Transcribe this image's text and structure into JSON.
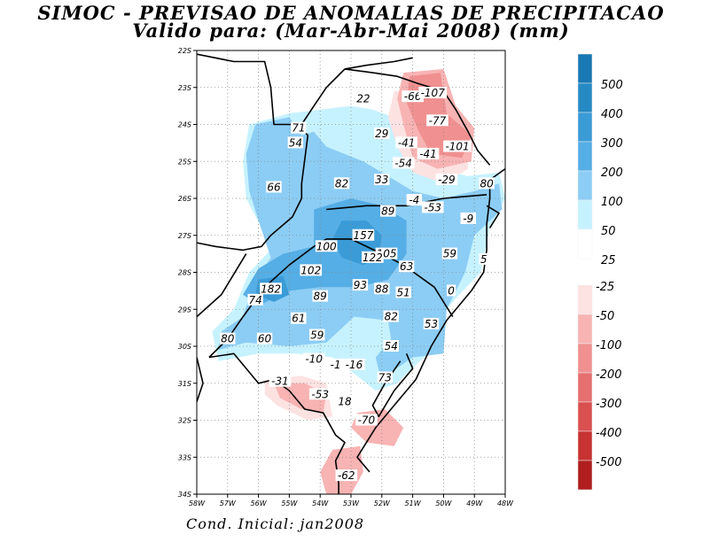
{
  "title": "SIMOC - PREVISAO DE ANOMALIAS DE PRECIPITACAO",
  "subtitle": "Valido para: (Mar-Abr-Mai 2008) (mm)",
  "footer": "Cond. Inicial: jan2008",
  "lat_labels": [
    "22S",
    "23S",
    "24S",
    "25S",
    "26S",
    "27S",
    "28S",
    "29S",
    "30S",
    "31S",
    "32S",
    "33S",
    "34S"
  ],
  "lon_labels": [
    "58W",
    "57W",
    "56W",
    "55W",
    "54W",
    "53W",
    "52W",
    "51W",
    "50W",
    "49W",
    "48W"
  ],
  "legend": {
    "positive": [
      {
        "label": "500",
        "color": "#1a78b4"
      },
      {
        "label": "400",
        "color": "#2689c4"
      },
      {
        "label": "300",
        "color": "#3a9bd6"
      },
      {
        "label": "200",
        "color": "#55aee5"
      },
      {
        "label": "100",
        "color": "#8ccdf5"
      },
      {
        "label": "50",
        "color": "#c6f2ff"
      },
      {
        "label": "25",
        "color": "#ffffff"
      }
    ],
    "negative": [
      {
        "label": "-25",
        "color": "#fde2e2"
      },
      {
        "label": "-50",
        "color": "#f8b3b3"
      },
      {
        "label": "-100",
        "color": "#f09090"
      },
      {
        "label": "-200",
        "color": "#e66f6f"
      },
      {
        "label": "-300",
        "color": "#da4f4f"
      },
      {
        "label": "-400",
        "color": "#c73232"
      },
      {
        "label": "-500",
        "color": "#b01e1e"
      }
    ]
  },
  "map_labels": [
    {
      "text": "22",
      "lon": -52.6,
      "lat": -23.3
    },
    {
      "text": "-66",
      "lon": -51.0,
      "lat": -23.25
    },
    {
      "text": "-107",
      "lon": -50.35,
      "lat": -23.15
    },
    {
      "text": "-77",
      "lon": -50.2,
      "lat": -23.9
    },
    {
      "text": "71",
      "lon": -54.7,
      "lat": -24.1
    },
    {
      "text": "29",
      "lon": -52.0,
      "lat": -24.25
    },
    {
      "text": "54",
      "lon": -54.8,
      "lat": -24.5
    },
    {
      "text": "-41",
      "lon": -51.2,
      "lat": -24.5
    },
    {
      "text": "-101",
      "lon": -49.55,
      "lat": -24.6
    },
    {
      "text": "-41",
      "lon": -50.5,
      "lat": -24.8
    },
    {
      "text": "-54",
      "lon": -51.3,
      "lat": -25.05
    },
    {
      "text": "33",
      "lon": -52.0,
      "lat": -25.5
    },
    {
      "text": "82",
      "lon": -53.3,
      "lat": -25.6
    },
    {
      "text": "-29",
      "lon": -49.9,
      "lat": -25.5
    },
    {
      "text": "80",
      "lon": -48.6,
      "lat": -25.6
    },
    {
      "text": "66",
      "lon": -55.5,
      "lat": -25.7
    },
    {
      "text": "-4",
      "lon": -50.95,
      "lat": -26.05
    },
    {
      "text": "-53",
      "lon": -50.35,
      "lat": -26.25
    },
    {
      "text": "89",
      "lon": -51.8,
      "lat": -26.35
    },
    {
      "text": "-9",
      "lon": -49.2,
      "lat": -26.55
    },
    {
      "text": "157",
      "lon": -52.6,
      "lat": -27.0
    },
    {
      "text": "100",
      "lon": -53.8,
      "lat": -27.3
    },
    {
      "text": "105",
      "lon": -51.85,
      "lat": -27.5
    },
    {
      "text": "59",
      "lon": -49.8,
      "lat": -27.5
    },
    {
      "text": "5",
      "lon": -48.7,
      "lat": -27.65
    },
    {
      "text": "122",
      "lon": -52.3,
      "lat": -27.6
    },
    {
      "text": "63",
      "lon": -51.2,
      "lat": -27.85
    },
    {
      "text": "102",
      "lon": -54.3,
      "lat": -27.95
    },
    {
      "text": "182",
      "lon": -55.6,
      "lat": -28.45
    },
    {
      "text": "93",
      "lon": -52.7,
      "lat": -28.35
    },
    {
      "text": "88",
      "lon": -52.0,
      "lat": -28.45
    },
    {
      "text": "51",
      "lon": -51.3,
      "lat": -28.55
    },
    {
      "text": "0",
      "lon": -49.75,
      "lat": -28.5
    },
    {
      "text": "89",
      "lon": -54.0,
      "lat": -28.65
    },
    {
      "text": "74",
      "lon": -56.1,
      "lat": -28.75
    },
    {
      "text": "61",
      "lon": -54.7,
      "lat": -29.25
    },
    {
      "text": "82",
      "lon": -51.7,
      "lat": -29.2
    },
    {
      "text": "53",
      "lon": -50.4,
      "lat": -29.4
    },
    {
      "text": "59",
      "lon": -54.1,
      "lat": -29.7
    },
    {
      "text": "80",
      "lon": -57.0,
      "lat": -29.8
    },
    {
      "text": "60",
      "lon": -55.8,
      "lat": -29.8
    },
    {
      "text": "54",
      "lon": -51.7,
      "lat": -30.0
    },
    {
      "text": "-10",
      "lon": -54.2,
      "lat": -30.35
    },
    {
      "text": "-1",
      "lon": -53.5,
      "lat": -30.5
    },
    {
      "text": "-16",
      "lon": -52.9,
      "lat": -30.5
    },
    {
      "text": "73",
      "lon": -51.9,
      "lat": -30.85
    },
    {
      "text": "-31",
      "lon": -55.3,
      "lat": -30.95
    },
    {
      "text": "-53",
      "lon": -54.0,
      "lat": -31.3
    },
    {
      "text": "18",
      "lon": -53.2,
      "lat": -31.5
    },
    {
      "text": "-70",
      "lon": -52.5,
      "lat": -32.0
    },
    {
      "text": "-62",
      "lon": -53.15,
      "lat": -33.5
    }
  ],
  "regions": [
    {
      "class": "50",
      "points": [
        [
          -56.3,
          -24.0
        ],
        [
          -55.0,
          -23.7
        ],
        [
          -54.0,
          -23.6
        ],
        [
          -53.0,
          -23.5
        ],
        [
          -52.3,
          -23.6
        ],
        [
          -51.3,
          -23.9
        ],
        [
          -51.0,
          -24.8
        ],
        [
          -50.2,
          -25.2
        ],
        [
          -49.2,
          -25.4
        ],
        [
          -48.2,
          -25.3
        ],
        [
          -48.0,
          -26.0
        ],
        [
          -48.5,
          -26.8
        ],
        [
          -48.8,
          -28.0
        ],
        [
          -49.6,
          -28.7
        ],
        [
          -50.1,
          -29.2
        ],
        [
          -50.2,
          -30.0
        ],
        [
          -50.9,
          -30.5
        ],
        [
          -51.5,
          -31.0
        ],
        [
          -52.2,
          -31.2
        ],
        [
          -52.8,
          -30.8
        ],
        [
          -53.6,
          -30.3
        ],
        [
          -54.8,
          -30.2
        ],
        [
          -56.0,
          -30.2
        ],
        [
          -57.3,
          -30.4
        ],
        [
          -57.5,
          -29.6
        ],
        [
          -56.8,
          -29.0
        ],
        [
          -56.3,
          -28.0
        ],
        [
          -55.5,
          -27.3
        ],
        [
          -55.9,
          -26.8
        ],
        [
          -56.4,
          -26.0
        ],
        [
          -56.5,
          -25.0
        ]
      ]
    },
    {
      "class": "100",
      "points": [
        [
          -56.1,
          -24.0
        ],
        [
          -55.0,
          -23.8
        ],
        [
          -54.6,
          -24.3
        ],
        [
          -54.2,
          -24.2
        ],
        [
          -53.8,
          -24.6
        ],
        [
          -52.6,
          -25.0
        ],
        [
          -51.8,
          -25.4
        ],
        [
          -51.0,
          -25.8
        ],
        [
          -50.0,
          -26.0
        ],
        [
          -49.0,
          -25.8
        ],
        [
          -48.2,
          -25.6
        ],
        [
          -48.1,
          -26.3
        ],
        [
          -49.0,
          -27.0
        ],
        [
          -49.3,
          -28.0
        ],
        [
          -49.9,
          -29.0
        ],
        [
          -50.0,
          -30.2
        ],
        [
          -51.0,
          -30.3
        ],
        [
          -51.7,
          -30.7
        ],
        [
          -52.0,
          -31.0
        ],
        [
          -52.2,
          -30.3
        ],
        [
          -51.7,
          -29.8
        ],
        [
          -51.8,
          -29.3
        ],
        [
          -52.9,
          -29.2
        ],
        [
          -53.8,
          -29.9
        ],
        [
          -55.0,
          -30.0
        ],
        [
          -56.4,
          -29.9
        ],
        [
          -57.3,
          -30.1
        ],
        [
          -57.2,
          -29.6
        ],
        [
          -56.5,
          -29.2
        ],
        [
          -56.2,
          -28.4
        ],
        [
          -55.6,
          -27.6
        ],
        [
          -56.0,
          -26.6
        ],
        [
          -56.3,
          -25.8
        ],
        [
          -56.4,
          -24.8
        ]
      ]
    },
    {
      "class": "200",
      "points": [
        [
          -54.2,
          -26.3
        ],
        [
          -53.0,
          -26.0
        ],
        [
          -52.0,
          -26.2
        ],
        [
          -51.2,
          -26.6
        ],
        [
          -51.2,
          -27.5
        ],
        [
          -51.8,
          -28.2
        ],
        [
          -52.8,
          -28.4
        ],
        [
          -54.0,
          -28.4
        ],
        [
          -55.0,
          -28.5
        ],
        [
          -56.0,
          -28.9
        ],
        [
          -56.5,
          -28.6
        ],
        [
          -56.0,
          -27.9
        ],
        [
          -55.2,
          -27.5
        ],
        [
          -54.2,
          -27.3
        ]
      ]
    },
    {
      "class": "300",
      "points": [
        [
          -53.3,
          -26.6
        ],
        [
          -52.5,
          -26.6
        ],
        [
          -52.0,
          -27.0
        ],
        [
          -52.1,
          -27.6
        ],
        [
          -52.6,
          -27.8
        ],
        [
          -53.3,
          -27.6
        ],
        [
          -53.6,
          -27.1
        ]
      ]
    },
    {
      "class": "300",
      "points": [
        [
          -56.0,
          -28.2
        ],
        [
          -55.2,
          -28.1
        ],
        [
          -55.0,
          -28.6
        ],
        [
          -55.5,
          -28.8
        ],
        [
          -56.1,
          -28.6
        ]
      ]
    },
    {
      "class": "-25",
      "points": [
        [
          -51.6,
          -23.1
        ],
        [
          -50.6,
          -23.1
        ],
        [
          -49.7,
          -23.7
        ],
        [
          -49.3,
          -24.2
        ],
        [
          -49.2,
          -25.2
        ],
        [
          -50.0,
          -25.6
        ],
        [
          -51.0,
          -25.3
        ],
        [
          -51.5,
          -24.6
        ],
        [
          -51.8,
          -23.8
        ]
      ]
    },
    {
      "class": "-50",
      "points": [
        [
          -51.3,
          -22.6
        ],
        [
          -50.0,
          -22.5
        ],
        [
          -49.6,
          -23.5
        ],
        [
          -49.0,
          -24.1
        ],
        [
          -49.1,
          -25.0
        ],
        [
          -50.2,
          -25.2
        ],
        [
          -51.0,
          -24.9
        ],
        [
          -51.3,
          -24.0
        ],
        [
          -51.5,
          -23.3
        ]
      ]
    },
    {
      "class": "-100",
      "points": [
        [
          -51.1,
          -22.7
        ],
        [
          -50.1,
          -22.6
        ],
        [
          -49.9,
          -23.7
        ],
        [
          -49.1,
          -24.3
        ],
        [
          -49.4,
          -24.9
        ],
        [
          -50.4,
          -24.8
        ],
        [
          -50.8,
          -24.2
        ],
        [
          -51.2,
          -23.4
        ]
      ]
    },
    {
      "class": "-25",
      "points": [
        [
          -55.8,
          -30.9
        ],
        [
          -54.6,
          -30.8
        ],
        [
          -53.8,
          -31.0
        ],
        [
          -53.6,
          -31.9
        ],
        [
          -54.4,
          -32.0
        ],
        [
          -55.4,
          -31.6
        ],
        [
          -55.8,
          -31.3
        ]
      ]
    },
    {
      "class": "-50",
      "points": [
        [
          -55.5,
          -31.0
        ],
        [
          -54.5,
          -31.0
        ],
        [
          -53.8,
          -31.3
        ],
        [
          -53.9,
          -31.8
        ],
        [
          -54.6,
          -31.7
        ],
        [
          -55.3,
          -31.4
        ]
      ]
    },
    {
      "class": "-50",
      "points": [
        [
          -52.8,
          -31.8
        ],
        [
          -51.9,
          -31.7
        ],
        [
          -51.3,
          -32.2
        ],
        [
          -51.6,
          -32.7
        ],
        [
          -52.5,
          -32.6
        ],
        [
          -53.0,
          -32.2
        ]
      ]
    },
    {
      "class": "-50",
      "points": [
        [
          -53.6,
          -32.8
        ],
        [
          -52.7,
          -32.7
        ],
        [
          -52.6,
          -33.4
        ],
        [
          -53.0,
          -34.0
        ],
        [
          -53.8,
          -34.0
        ],
        [
          -54.0,
          -33.4
        ]
      ]
    }
  ],
  "lines": [
    {
      "name": "paraguay-border",
      "points": [
        [
          -58.0,
          -22.1
        ],
        [
          -56.8,
          -22.3
        ],
        [
          -55.8,
          -22.3
        ],
        [
          -55.6,
          -23.0
        ],
        [
          -55.5,
          -24.0
        ],
        [
          -54.7,
          -24.0
        ],
        [
          -54.4,
          -24.3
        ],
        [
          -54.6,
          -25.6
        ],
        [
          -54.6,
          -26.0
        ]
      ]
    },
    {
      "name": "parana-river",
      "points": [
        [
          -58.0,
          -27.2
        ],
        [
          -57.4,
          -27.3
        ],
        [
          -56.5,
          -27.4
        ],
        [
          -55.9,
          -27.3
        ],
        [
          -55.6,
          -27.0
        ],
        [
          -54.9,
          -26.5
        ],
        [
          -54.6,
          -26.0
        ]
      ]
    },
    {
      "name": "uruguay-river",
      "points": [
        [
          -57.6,
          -30.3
        ],
        [
          -57.0,
          -29.8
        ],
        [
          -56.5,
          -29.2
        ],
        [
          -55.8,
          -28.4
        ],
        [
          -55.0,
          -27.8
        ],
        [
          -54.2,
          -27.3
        ],
        [
          -53.8,
          -27.1
        ]
      ]
    },
    {
      "name": "uruguay-border",
      "points": [
        [
          -57.6,
          -30.3
        ],
        [
          -56.8,
          -30.2
        ],
        [
          -56.0,
          -31.0
        ],
        [
          -55.5,
          -30.9
        ],
        [
          -55.0,
          -31.2
        ],
        [
          -54.5,
          -31.7
        ],
        [
          -53.9,
          -31.8
        ],
        [
          -53.5,
          -32.4
        ],
        [
          -53.2,
          -32.6
        ],
        [
          -53.5,
          -33.1
        ],
        [
          -53.4,
          -33.7
        ],
        [
          -53.4,
          -34.0
        ]
      ]
    },
    {
      "name": "coast",
      "points": [
        [
          -52.4,
          -33.4
        ],
        [
          -52.8,
          -33.0
        ],
        [
          -52.2,
          -32.2
        ],
        [
          -51.6,
          -31.6
        ],
        [
          -50.9,
          -30.9
        ],
        [
          -50.4,
          -30.0
        ],
        [
          -49.9,
          -29.3
        ],
        [
          -49.1,
          -28.5
        ],
        [
          -48.7,
          -28.0
        ],
        [
          -48.6,
          -27.4
        ],
        [
          -48.6,
          -26.7
        ],
        [
          -48.5,
          -26.0
        ],
        [
          -48.5,
          -25.5
        ],
        [
          -48.0,
          -25.2
        ]
      ]
    },
    {
      "name": "sc-border",
      "points": [
        [
          -53.8,
          -27.1
        ],
        [
          -53.0,
          -27.1
        ],
        [
          -52.0,
          -27.5
        ],
        [
          -51.3,
          -27.8
        ],
        [
          -50.3,
          -28.4
        ],
        [
          -49.7,
          -29.2
        ]
      ]
    },
    {
      "name": "pr-border",
      "points": [
        [
          -53.8,
          -26.3
        ],
        [
          -52.5,
          -26.2
        ],
        [
          -51.2,
          -26.2
        ],
        [
          -50.0,
          -26.0
        ],
        [
          -48.6,
          -25.9
        ]
      ]
    },
    {
      "name": "sp-border",
      "points": [
        [
          -53.2,
          -22.5
        ],
        [
          -52.3,
          -22.6
        ],
        [
          -51.5,
          -22.7
        ],
        [
          -50.8,
          -22.9
        ],
        [
          -50.0,
          -23.1
        ],
        [
          -49.6,
          -23.6
        ],
        [
          -49.2,
          -24.2
        ],
        [
          -48.9,
          -24.7
        ],
        [
          -48.5,
          -25.1
        ]
      ]
    },
    {
      "name": "ms-border",
      "points": [
        [
          -54.6,
          -24.0
        ],
        [
          -54.2,
          -23.5
        ],
        [
          -53.8,
          -23.0
        ],
        [
          -53.2,
          -22.5
        ]
      ]
    },
    {
      "name": "north-river",
      "points": [
        [
          -53.2,
          -22.5
        ],
        [
          -52.5,
          -22.4
        ],
        [
          -51.6,
          -22.3
        ],
        [
          -51.0,
          -22.2
        ]
      ]
    },
    {
      "name": "lagoa-dos-patos",
      "points": [
        [
          -51.2,
          -30.2
        ],
        [
          -51.0,
          -30.6
        ],
        [
          -51.6,
          -31.2
        ],
        [
          -52.1,
          -31.9
        ],
        [
          -52.3,
          -31.6
        ],
        [
          -51.9,
          -31.0
        ],
        [
          -51.4,
          -30.4
        ]
      ]
    },
    {
      "name": "argentina-border",
      "points": [
        [
          -56.4,
          -27.5
        ],
        [
          -57.2,
          -28.6
        ],
        [
          -58.0,
          -29.2
        ]
      ]
    },
    {
      "name": "west-line",
      "points": [
        [
          -58.0,
          -30.3
        ],
        [
          -57.8,
          -31.0
        ],
        [
          -58.0,
          -31.5
        ]
      ]
    },
    {
      "name": "coast-islands",
      "points": [
        [
          -48.6,
          -26.2
        ],
        [
          -48.2,
          -26.4
        ],
        [
          -48.5,
          -26.8
        ]
      ]
    }
  ]
}
